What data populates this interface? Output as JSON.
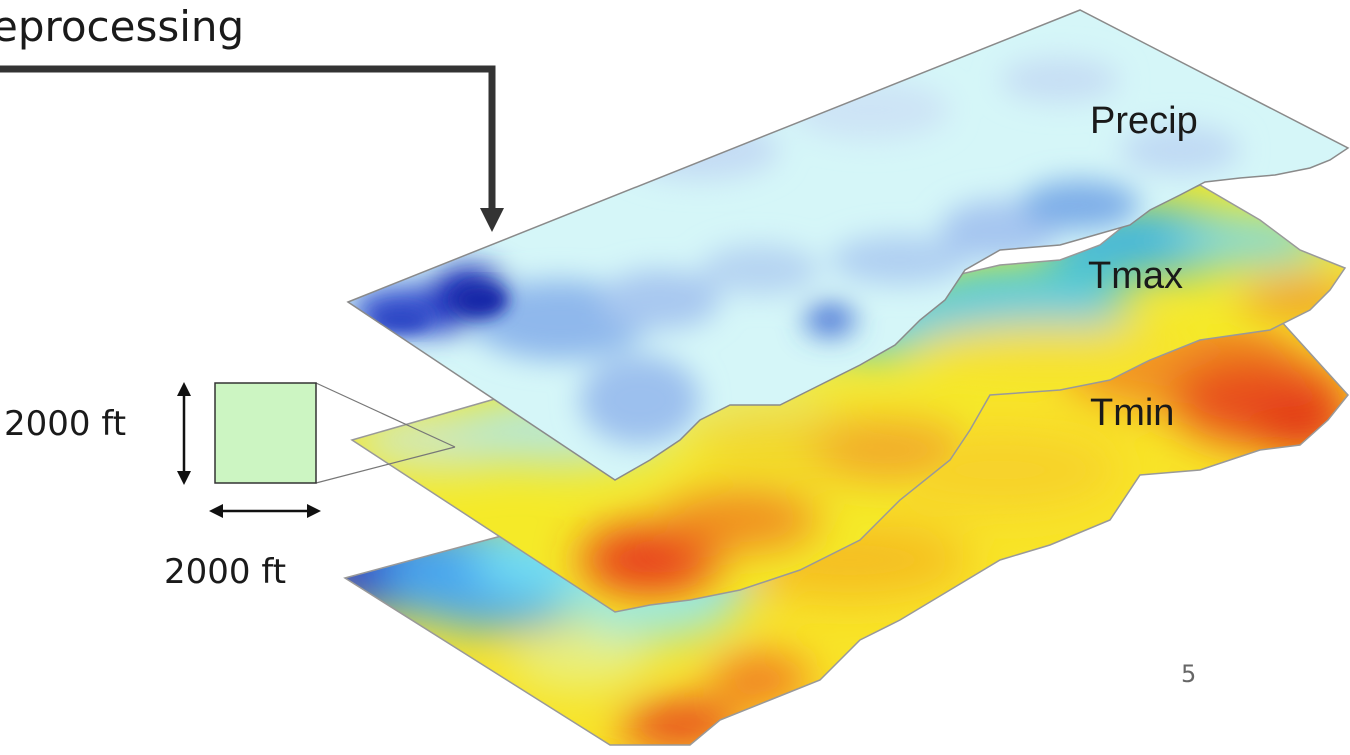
{
  "header": {
    "text": "eprocessing"
  },
  "layers": [
    {
      "label": "Precip"
    },
    {
      "label": "Tmax"
    },
    {
      "label": "Tmin"
    }
  ],
  "cell": {
    "height_label": "2000 ft",
    "width_label": "2000 ft"
  },
  "slide_number": "5",
  "colors": {
    "cell_fill": "#ccf5c2",
    "arrow": "#333333",
    "precip_base": "#d5f6f8",
    "precip_dark": "#1e2fb8",
    "tmax_base": "#f5ea28",
    "tmax_cool": "#3fc9e6",
    "tmin_base": "#f8e428",
    "tmin_hot": "#e8341e"
  }
}
